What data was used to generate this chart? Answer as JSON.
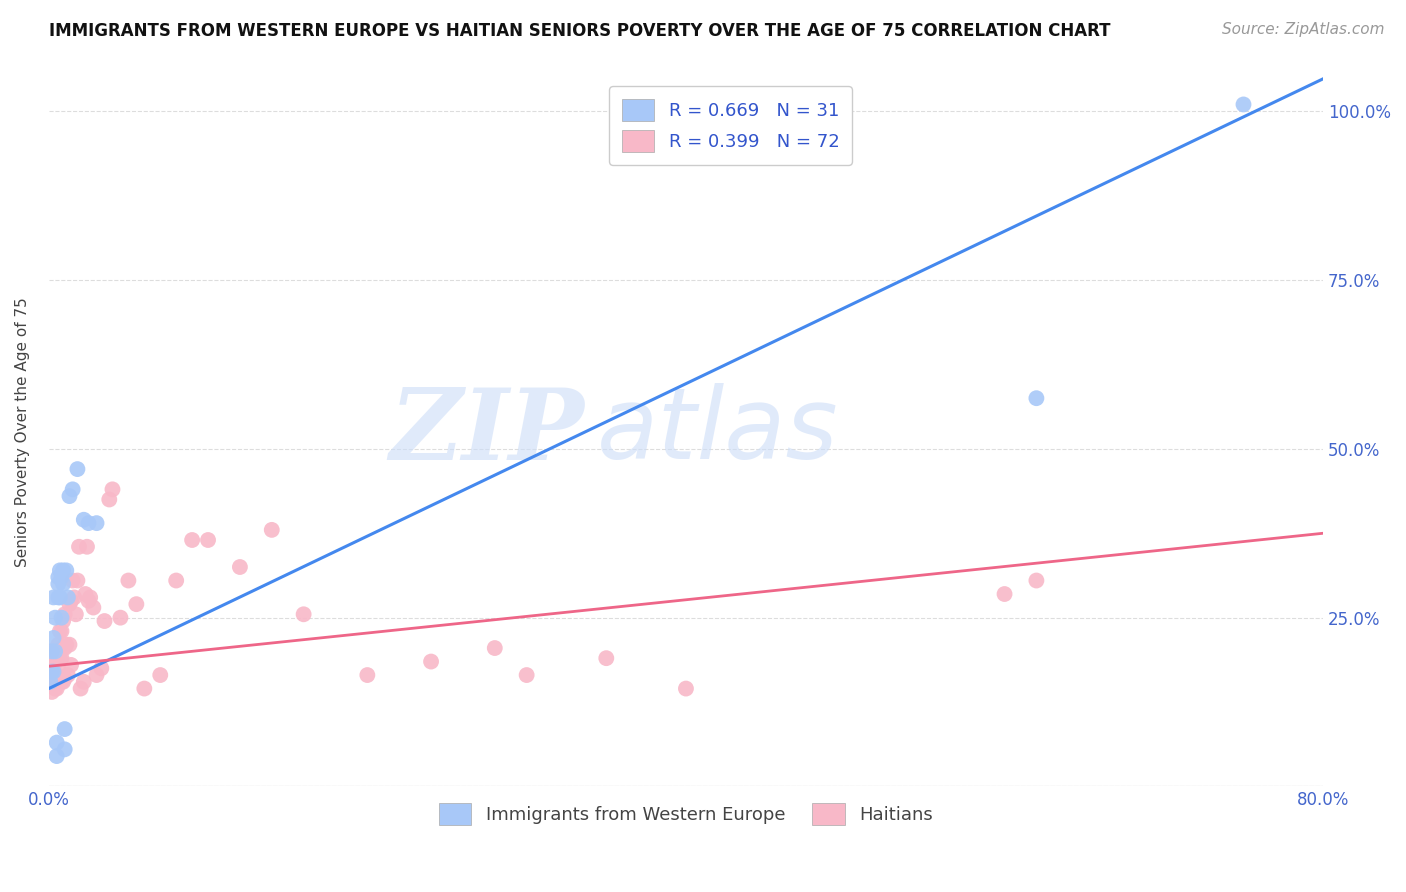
{
  "title": "IMMIGRANTS FROM WESTERN EUROPE VS HAITIAN SENIORS POVERTY OVER THE AGE OF 75 CORRELATION CHART",
  "source": "Source: ZipAtlas.com",
  "ylabel": "Seniors Poverty Over the Age of 75",
  "xlim": [
    0,
    0.8
  ],
  "ylim": [
    0,
    1.05
  ],
  "blue_color": "#a8c8f8",
  "pink_color": "#f8b8c8",
  "blue_line_color": "#4488ee",
  "pink_line_color": "#ee6688",
  "legend_r1": "R = 0.669   N = 31",
  "legend_r2": "R = 0.399   N = 72",
  "legend_label1": "Immigrants from Western Europe",
  "legend_label2": "Haitians",
  "watermark_zip": "ZIP",
  "watermark_atlas": "atlas",
  "blue_line_x0": 0.0,
  "blue_line_y0": 0.145,
  "blue_line_x1": 0.8,
  "blue_line_y1": 1.048,
  "pink_line_x0": 0.0,
  "pink_line_y0": 0.178,
  "pink_line_x1": 0.8,
  "pink_line_y1": 0.375,
  "blue_x": [
    0.001,
    0.002,
    0.002,
    0.003,
    0.003,
    0.003,
    0.004,
    0.004,
    0.005,
    0.005,
    0.006,
    0.006,
    0.006,
    0.007,
    0.007,
    0.008,
    0.008,
    0.009,
    0.009,
    0.01,
    0.01,
    0.011,
    0.012,
    0.013,
    0.015,
    0.018,
    0.022,
    0.025,
    0.03,
    0.62,
    0.75
  ],
  "blue_y": [
    0.155,
    0.17,
    0.2,
    0.17,
    0.22,
    0.28,
    0.2,
    0.25,
    0.045,
    0.065,
    0.28,
    0.3,
    0.31,
    0.28,
    0.32,
    0.25,
    0.31,
    0.3,
    0.32,
    0.055,
    0.085,
    0.32,
    0.28,
    0.43,
    0.44,
    0.47,
    0.395,
    0.39,
    0.39,
    0.575,
    1.01
  ],
  "pink_x": [
    0.001,
    0.001,
    0.001,
    0.002,
    0.002,
    0.002,
    0.003,
    0.003,
    0.003,
    0.004,
    0.004,
    0.004,
    0.005,
    0.005,
    0.005,
    0.006,
    0.006,
    0.006,
    0.007,
    0.007,
    0.007,
    0.008,
    0.008,
    0.008,
    0.009,
    0.009,
    0.009,
    0.01,
    0.01,
    0.01,
    0.011,
    0.012,
    0.013,
    0.013,
    0.014,
    0.014,
    0.015,
    0.016,
    0.017,
    0.018,
    0.019,
    0.02,
    0.022,
    0.023,
    0.024,
    0.025,
    0.026,
    0.028,
    0.03,
    0.033,
    0.035,
    0.038,
    0.04,
    0.045,
    0.05,
    0.055,
    0.06,
    0.07,
    0.08,
    0.09,
    0.1,
    0.12,
    0.14,
    0.16,
    0.2,
    0.24,
    0.28,
    0.3,
    0.35,
    0.4,
    0.6,
    0.62
  ],
  "pink_y": [
    0.155,
    0.175,
    0.2,
    0.14,
    0.165,
    0.185,
    0.155,
    0.175,
    0.195,
    0.145,
    0.165,
    0.185,
    0.145,
    0.165,
    0.195,
    0.155,
    0.175,
    0.21,
    0.155,
    0.19,
    0.23,
    0.155,
    0.19,
    0.23,
    0.155,
    0.205,
    0.245,
    0.16,
    0.205,
    0.255,
    0.21,
    0.165,
    0.21,
    0.27,
    0.18,
    0.275,
    0.305,
    0.28,
    0.255,
    0.305,
    0.355,
    0.145,
    0.155,
    0.285,
    0.355,
    0.275,
    0.28,
    0.265,
    0.165,
    0.175,
    0.245,
    0.425,
    0.44,
    0.25,
    0.305,
    0.27,
    0.145,
    0.165,
    0.305,
    0.365,
    0.365,
    0.325,
    0.38,
    0.255,
    0.165,
    0.185,
    0.205,
    0.165,
    0.19,
    0.145,
    0.285,
    0.305
  ],
  "background_color": "#ffffff",
  "grid_color": "#dddddd",
  "tick_color": "#4466cc",
  "title_fontsize": 12,
  "source_fontsize": 11,
  "axis_fontsize": 12,
  "legend_fontsize": 13
}
